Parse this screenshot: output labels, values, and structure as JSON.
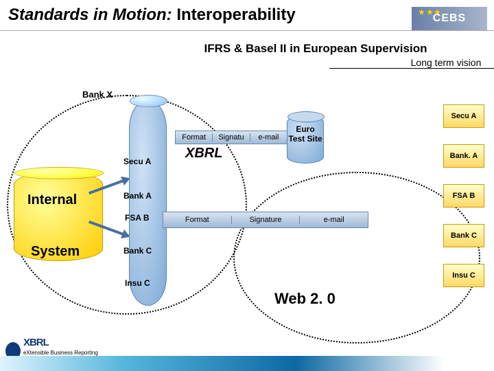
{
  "title_italic": "Standards in Motion:",
  "title_rest": " Interoperability",
  "subtitle": "IFRS & Basel II in European Supervision",
  "longterm": "Long term vision",
  "logo_right": "CEBS",
  "bankx": "Bank X",
  "internal": "Internal",
  "system": "System",
  "left_labels": {
    "secu_a": "Secu A",
    "bank_a": "Bank A",
    "fsa_b": "FSA B",
    "bank_c": "Bank C",
    "insu_c": "Insu C"
  },
  "pipe_small": {
    "a": "Format",
    "b": "Signatu",
    "c": "e-mail"
  },
  "xbrl": "XBRL",
  "pipe_big": {
    "a": "Format",
    "b": "Signature",
    "c": "e-mail"
  },
  "euro": "Euro Test Site",
  "right_boxes": [
    "Secu A",
    "Bank. A",
    "FSA B",
    "Bank C",
    "Insu C"
  ],
  "web20": "Web 2. 0",
  "xbrl_logo": {
    "big": "XBRL",
    "small": "eXtensible Business Reporting Language"
  },
  "colors": {
    "yellow": "#ffcc00",
    "blue": "#7faad6",
    "text": "#000000",
    "footer_primary": "#0d68a3"
  }
}
